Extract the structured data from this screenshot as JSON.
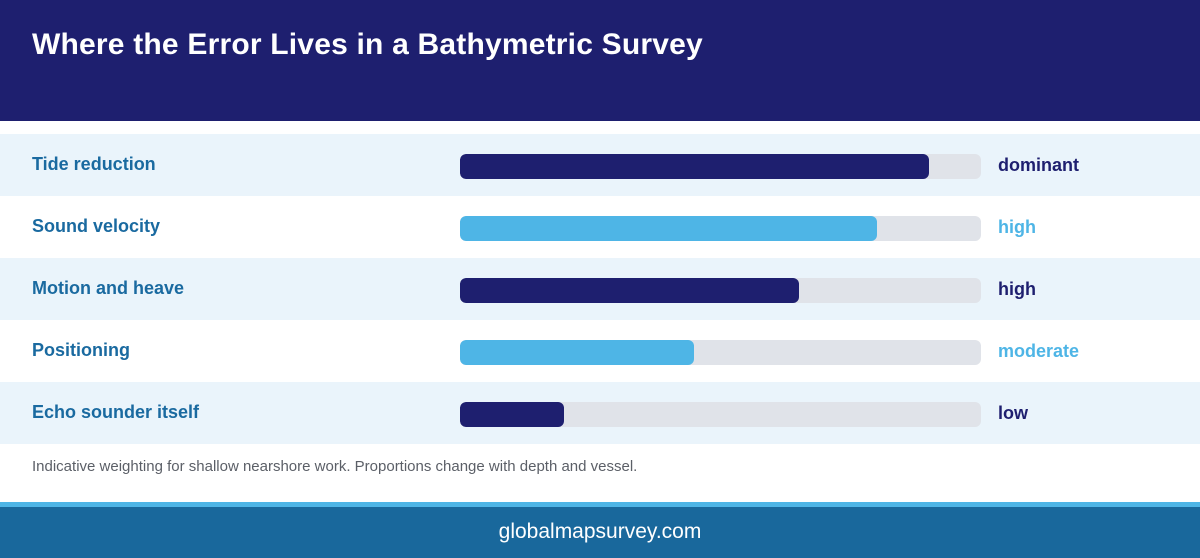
{
  "title": "Where the Error Lives in a Bathymetric Survey",
  "colors": {
    "header_bg": "#1e1f6f",
    "dark_bar": "#1e1f6f",
    "light_bar": "#4eb5e6",
    "track": "#e0e3e9",
    "label": "#1a6aa0",
    "footer_bg": "#19689c",
    "footer_accent": "#4eb5e6"
  },
  "chart_data": {
    "type": "bar",
    "orientation": "horizontal",
    "categories": [
      "Tide reduction",
      "Sound velocity",
      "Motion and heave",
      "Positioning",
      "Echo sounder itself"
    ],
    "values": [
      0.9,
      0.8,
      0.65,
      0.45,
      0.2
    ],
    "value_labels": [
      "dominant",
      "high",
      "high",
      "moderate",
      "low"
    ],
    "bar_colors": [
      "#1e1f6f",
      "#4eb5e6",
      "#1e1f6f",
      "#4eb5e6",
      "#1e1f6f"
    ],
    "xlim": [
      0,
      1
    ],
    "grid": false
  },
  "note": "Indicative weighting for shallow nearshore work. Proportions change with depth and vessel.",
  "footer": {
    "site": "globalmapsurvey.com"
  }
}
